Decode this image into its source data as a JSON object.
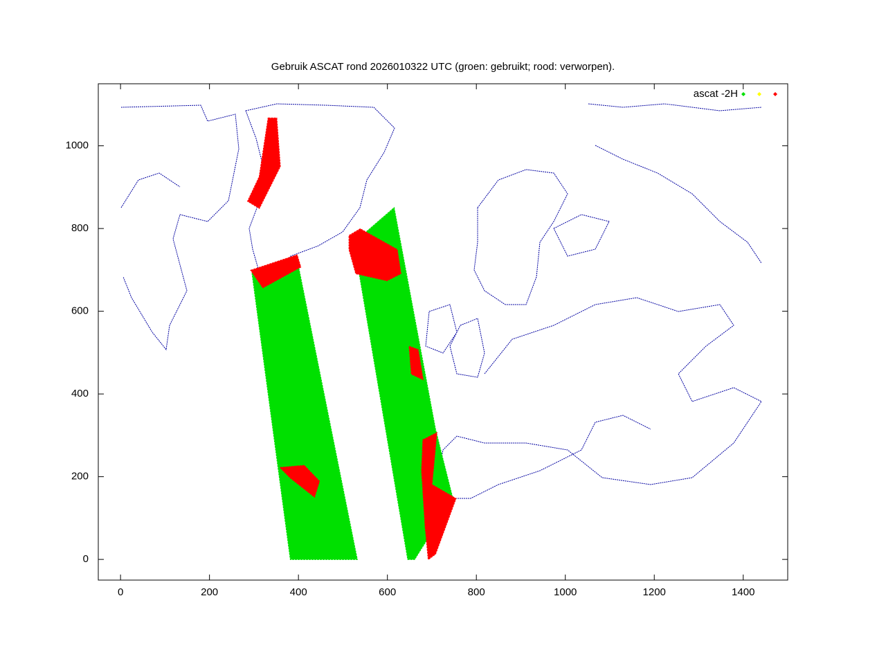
{
  "chart_data": {
    "type": "scatter",
    "title": "Gebruik ASCAT rond 2026010322 UTC (groen: gebruikt; rood: verworpen).",
    "xlim": [
      -50,
      1500
    ],
    "ylim": [
      -50,
      1150
    ],
    "xticks": [
      0,
      200,
      400,
      600,
      800,
      1000,
      1200,
      1400
    ],
    "yticks": [
      0,
      200,
      400,
      600,
      800,
      1000
    ],
    "legend": "top right",
    "series": [
      {
        "name": "ascat -2H",
        "color": "#00e000",
        "x": [
          296,
          397,
          532,
          382,
          null,
          525,
          615,
          708,
          747,
          661,
          646
        ],
        "y": [
          691,
          724,
          0,
          0,
          null,
          766,
          850,
          314,
          147,
          0,
          0
        ]
      },
      {
        "color": "#ffff00",
        "x": [],
        "y": []
      },
      {
        "color": "#ff0000",
        "x": [
          332,
          351,
          359,
          312,
          286,
          312,
          null,
          514,
          539,
          622,
          630,
          599,
          529,
          514,
          null,
          680,
          711,
          700,
          754,
          708,
          692,
          685,
          677,
          null,
          293,
          397,
          405,
          320,
          null,
          359,
          413,
          447,
          436,
          382,
          null,
          649,
          669,
          680,
          654
        ],
        "y": [
          1067,
          1067,
          950,
          849,
          866,
          925,
          null,
          783,
          799,
          749,
          691,
          674,
          691,
          749,
          null,
          289,
          306,
          181,
          147,
          13,
          0,
          80,
          214,
          null,
          699,
          736,
          707,
          657,
          null,
          222,
          227,
          189,
          151,
          197,
          null,
          515,
          507,
          435,
          448
        ]
      }
    ]
  }
}
